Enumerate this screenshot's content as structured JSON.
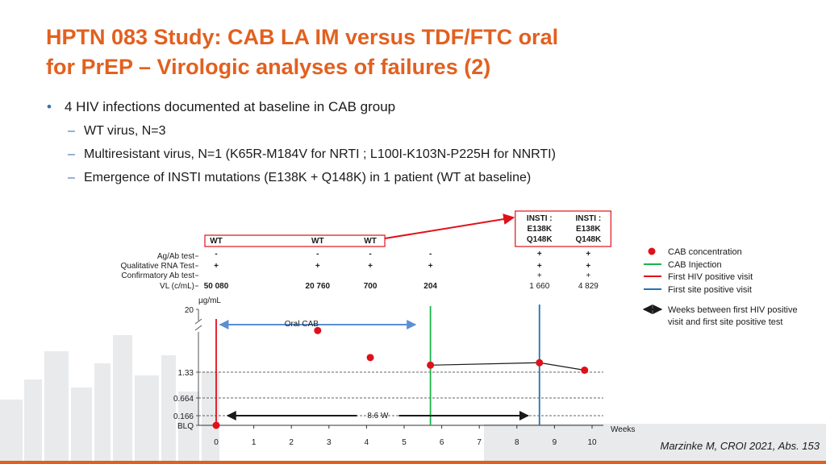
{
  "title_lines": [
    "HPTN 083 Study: CAB LA IM versus TDF/FTC oral",
    "for PrEP – Virologic analyses of failures (2)"
  ],
  "bullets": {
    "main": "4 HIV infections documented at baseline in CAB group",
    "subs": [
      "WT virus, N=3",
      "Multiresistant virus, N=1 (K65R-M184V for NRTI ; L100I-K103N-P225H for NNRTI)",
      "Emergence of INSTI mutations (E138K + Q148K) in 1 patient (WT at baseline)"
    ]
  },
  "chart_data": {
    "type": "scatter",
    "title": "",
    "xlabel": "Weeks",
    "ylabel": "µg/mL",
    "x_ticks": [
      "0",
      "1",
      "2",
      "3",
      "4",
      "5",
      "6",
      "7",
      "8",
      "9",
      "10"
    ],
    "y_ticks": [
      "20",
      "1.33",
      "0.664",
      "0.166",
      "BLQ"
    ],
    "xlim": [
      0,
      10
    ],
    "series": [
      {
        "name": "CAB concentration",
        "points": [
          {
            "x": 0,
            "y": "BLQ"
          },
          {
            "x": 2.7,
            "y": 8
          },
          {
            "x": 4.1,
            "y": 2.5
          },
          {
            "x": 5.7,
            "y": 1.8
          },
          {
            "x": 8.6,
            "y": 2.0
          },
          {
            "x": 9.8,
            "y": 1.45
          }
        ]
      }
    ],
    "connected_line_x": [
      5.7,
      8.6,
      9.8
    ],
    "vertical_lines": [
      {
        "kind": "first-hiv",
        "x": 0
      },
      {
        "kind": "cab-injection",
        "x": 5.7
      },
      {
        "kind": "first-site",
        "x": 8.6
      }
    ],
    "oral_cab": {
      "label": "Oral CAB",
      "from": 0.1,
      "to": 5.3
    },
    "interval": {
      "label": "8.6 W",
      "from": 0.3,
      "to": 8.3
    },
    "row_labels": [
      "Ag/Ab test",
      "Qualitative RNA Test",
      "Confirmatory Ab test",
      "VL (c/mL)"
    ],
    "visits": [
      {
        "x": 0,
        "top": [
          "WT"
        ],
        "ag": "-",
        "rna": "+",
        "conf": "",
        "vl": "50 080"
      },
      {
        "x": 2.7,
        "top": [
          "WT"
        ],
        "ag": "-",
        "rna": "+",
        "conf": "",
        "vl": "20 760"
      },
      {
        "x": 4.1,
        "top": [
          "WT"
        ],
        "ag": "-",
        "rna": "+",
        "conf": "",
        "vl": "700"
      },
      {
        "x": 5.7,
        "top": [],
        "ag": "-",
        "rna": "+",
        "conf": "",
        "vl": "204"
      },
      {
        "x": 8.6,
        "top": [
          "INSTI :",
          "E138K",
          "Q148K"
        ],
        "ag": "+",
        "rna": "+",
        "conf": "+",
        "vl": "1 660"
      },
      {
        "x": 9.9,
        "top": [
          "INSTI :",
          "E138K",
          "Q148K"
        ],
        "ag": "+",
        "rna": "+",
        "conf": "+",
        "vl": "4 829"
      }
    ],
    "legend": [
      {
        "kind": "dot",
        "label": "CAB concentration",
        "color": "#e0101a"
      },
      {
        "kind": "line",
        "label": "CAB Injection",
        "color": "#19b34a"
      },
      {
        "kind": "line",
        "label": "First HIV positive visit",
        "color": "#e0101a"
      },
      {
        "kind": "line",
        "label": "First site positive visit",
        "color": "#2471b5"
      },
      {
        "kind": "arrow",
        "label": [
          "Weeks between first HIV positive",
          "visit and first site positive test"
        ],
        "color": "#1a1a1a"
      }
    ]
  },
  "citation": "Marzinke M, CROI 2021, Abs. 153",
  "colors": {
    "title": "#e2601f",
    "accent": "#3d6cae",
    "red": "#e0101a",
    "green": "#19b34a",
    "blue": "#2471b5",
    "arrow": "#5b8fd1"
  }
}
